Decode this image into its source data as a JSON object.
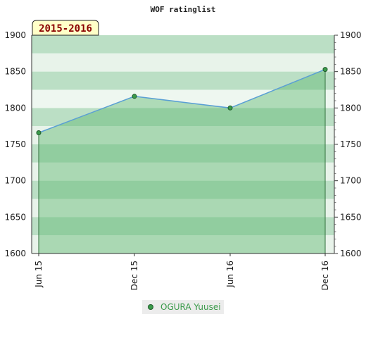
{
  "chart_data": {
    "type": "area",
    "title": "WOF ratinglist",
    "period_label": "2015-2016",
    "categories": [
      "Jun 15",
      "Dec 15",
      "Jun 16",
      "Dec 16"
    ],
    "series": [
      {
        "name": "OGURA Yuusei",
        "values": [
          1766,
          1816,
          1800,
          1853
        ]
      }
    ],
    "ylim": [
      1600,
      1900
    ],
    "yticks": [
      "1600",
      "1650",
      "1700",
      "1750",
      "1800",
      "1850",
      "1900"
    ],
    "xlabel": "",
    "ylabel": "",
    "grid": true,
    "legend": "bottom-center",
    "colors": {
      "band_light": "#e6f2e8",
      "band_mid": "#b4dcbf",
      "band_dark": "#8fcc9f",
      "area_fill": "#5fb770",
      "line": "#5a9fd4",
      "marker": "#3a9a4a",
      "period_bg": "#ffffc8",
      "period_text": "#8b0000"
    }
  }
}
